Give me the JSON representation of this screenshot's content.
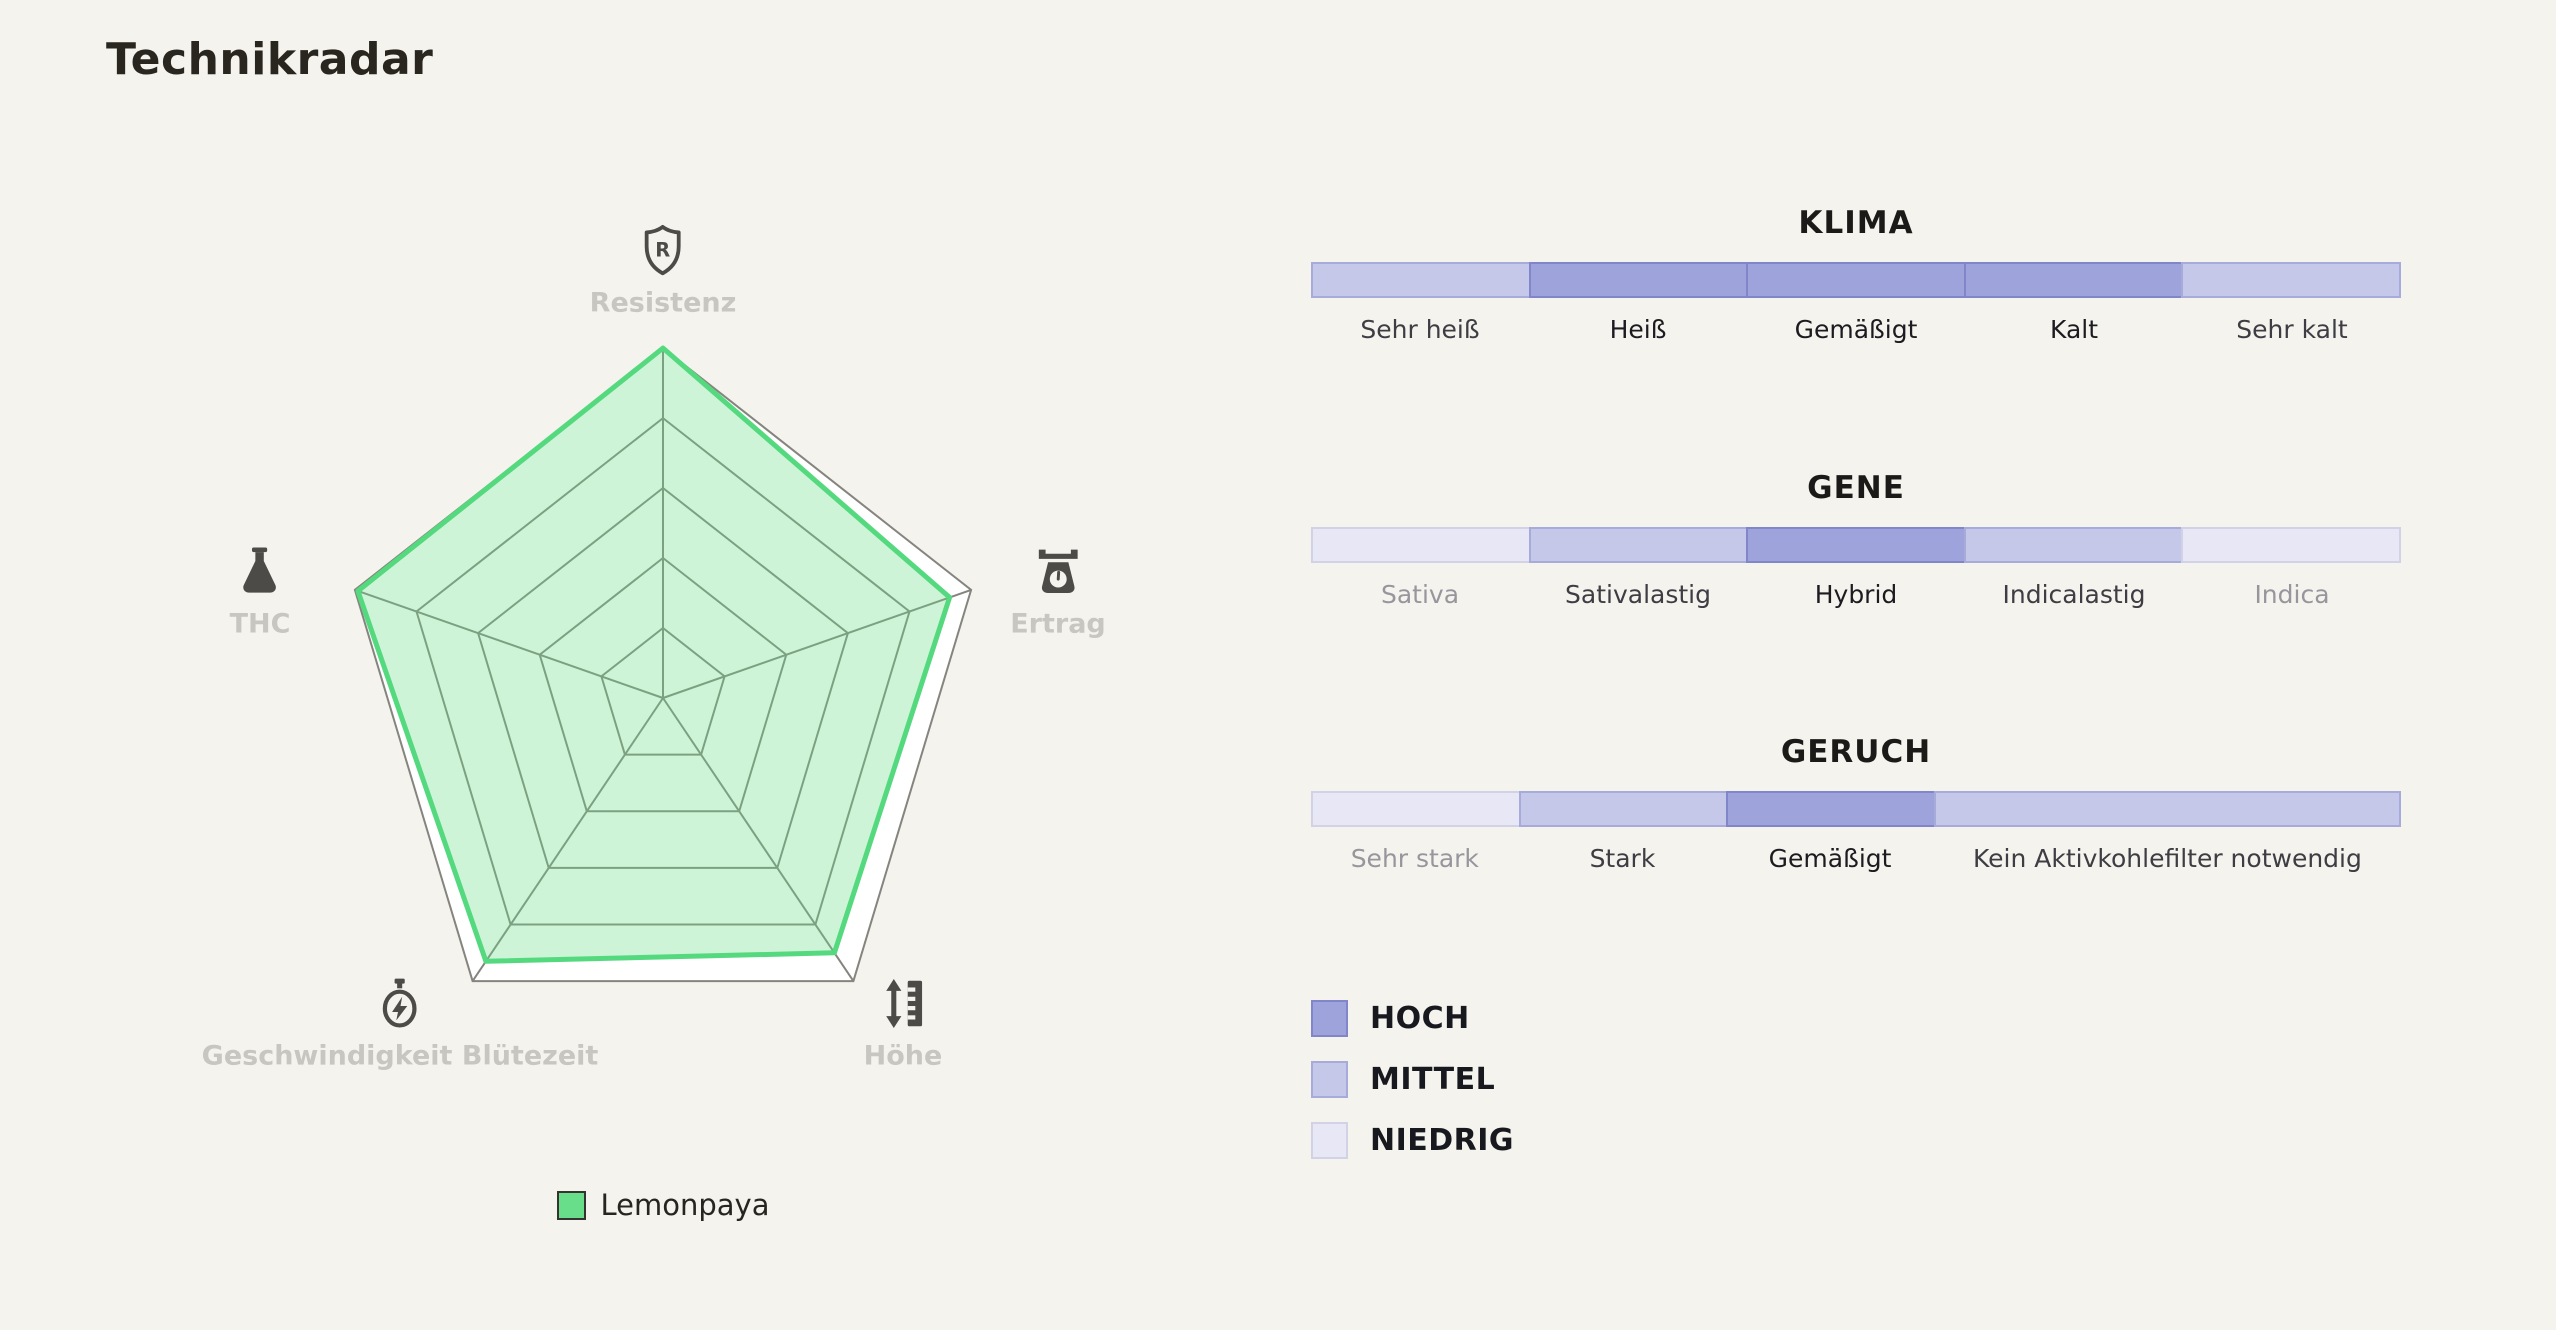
{
  "page": {
    "title": "Technikradar",
    "background_color": "#F5F3EE"
  },
  "chart_data": [
    {
      "type": "radar",
      "name": "technikradar-pentagon",
      "categories": [
        "Resistenz",
        "Ertrag",
        "Höhe",
        "Geschwindigkeit Blütezeit",
        "THC"
      ],
      "axis_icons": [
        "shield-r",
        "weighing-scale",
        "height-ruler",
        "stopwatch-lightning",
        "flask"
      ],
      "series": [
        {
          "name": "Lemonpaya",
          "values": [
            1.0,
            0.93,
            0.9,
            0.93,
            0.99
          ],
          "fill_color": "#69DE8A",
          "fill_opacity": 0.33,
          "stroke_color": "#55D97F"
        }
      ],
      "value_range": [
        0,
        1
      ],
      "grid_levels": 5,
      "grid_color": "#85847E",
      "plot_background": "#FFFFFF",
      "legend_position": "bottom"
    },
    {
      "type": "bar",
      "variant": "segmented-level-scale",
      "title": "KLIMA",
      "categories": [
        "Sehr heiß",
        "Heiß",
        "Gemäßigt",
        "Kalt",
        "Sehr kalt"
      ],
      "values": [
        "MITTEL",
        "HOCH",
        "HOCH",
        "HOCH",
        "MITTEL"
      ],
      "segment_flex": [
        1,
        1,
        1,
        1,
        1
      ]
    },
    {
      "type": "bar",
      "variant": "segmented-level-scale",
      "title": "GENE",
      "categories": [
        "Sativa",
        "Sativalastig",
        "Hybrid",
        "Indicalastig",
        "Indica"
      ],
      "values": [
        "NIEDRIG",
        "MITTEL",
        "HOCH",
        "MITTEL",
        "NIEDRIG"
      ],
      "segment_flex": [
        1,
        1,
        1,
        1,
        1
      ]
    },
    {
      "type": "bar",
      "variant": "segmented-level-scale",
      "title": "GERUCH",
      "categories": [
        "Sehr stark",
        "Stark",
        "Gemäßigt",
        "Kein Aktivkohlefilter notwendig"
      ],
      "values": [
        "NIEDRIG",
        "MITTEL",
        "HOCH",
        "MITTEL"
      ],
      "segment_flex": [
        1,
        1,
        1,
        2.25
      ]
    }
  ],
  "level_legend": [
    {
      "label": "HOCH",
      "level": "HOCH"
    },
    {
      "label": "MITTEL",
      "level": "MITTEL"
    },
    {
      "label": "NIEDRIG",
      "level": "NIEDRIG"
    }
  ],
  "level_colors": {
    "HOCH": {
      "fill": "#9FA3DB",
      "border": "#8186CB",
      "label_text": "#1C1B20"
    },
    "MITTEL": {
      "fill": "#C5C8E9",
      "border": "#A6ABDA",
      "label_text": "#3E3D43"
    },
    "NIEDRIG": {
      "fill": "#E7E7F5",
      "border": "#D2D2E6",
      "label_text": "#97969C"
    }
  },
  "icon_color": "#4C4B48",
  "axis_label_color": "#C8C6C1"
}
